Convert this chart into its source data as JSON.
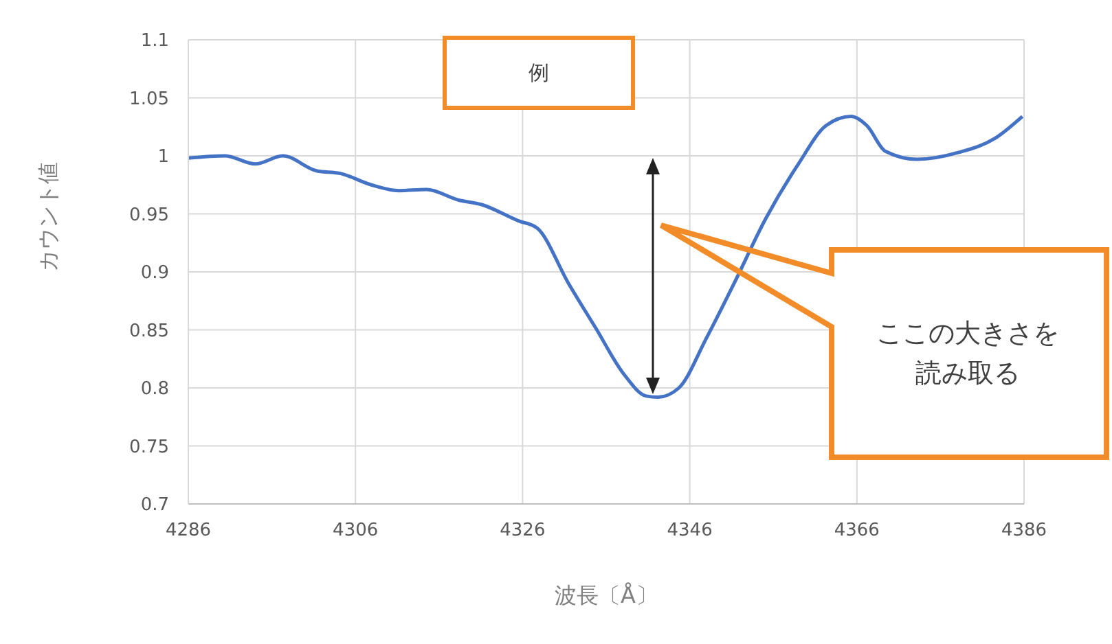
{
  "chart_data": {
    "type": "line",
    "xlabel": "波長〔Å〕",
    "ylabel": "カウント値",
    "annotations": [
      "例",
      "ここの大きさを読み取る"
    ],
    "x": [
      4286,
      4290.4,
      4294,
      4297.3,
      4301.4,
      4304.1,
      4307.9,
      4311.2,
      4314.5,
      4318.3,
      4321.1,
      4325.5,
      4327.7,
      4331.5,
      4334.8,
      4338.1,
      4340.8,
      4342.2,
      4344.7,
      4348,
      4351.3,
      4355.1,
      4359,
      4362.3,
      4365.3,
      4367.2,
      4369.4,
      4373.2,
      4378.2,
      4382.5,
      4385.8
    ],
    "series": [
      {
        "color": "#4472c4",
        "values": [
          0.998,
          1.0,
          0.993,
          1.0,
          0.987,
          0.985,
          0.975,
          0.97,
          0.971,
          0.962,
          0.958,
          0.944,
          0.938,
          0.89,
          0.851,
          0.812,
          0.793,
          0.792,
          0.8,
          0.843,
          0.89,
          0.946,
          0.993,
          1.026,
          1.034,
          1.026,
          1.004,
          0.997,
          1.003,
          1.015,
          1.034
        ]
      }
    ],
    "xlim": [
      4286,
      4386
    ],
    "xticks": [
      4286,
      4306,
      4326,
      4346,
      4366,
      4386
    ],
    "ylim": [
      0.7,
      1.1
    ],
    "yticks": [
      0.7,
      0.75,
      0.8,
      0.85,
      0.9,
      0.95,
      1,
      1.05,
      1.1
    ],
    "grid": true,
    "legend": false,
    "marker": "none",
    "line_style": "solid"
  }
}
